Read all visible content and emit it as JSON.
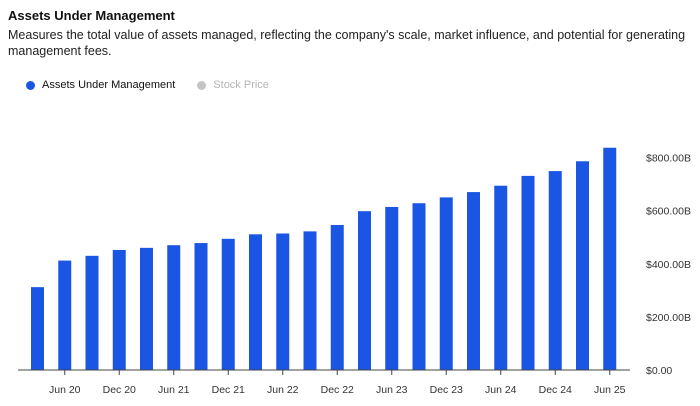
{
  "header": {
    "title": "Assets Under Management",
    "subtitle": "Measures the total value of assets managed, reflecting the company's scale, market influence, and potential for generating management fees."
  },
  "legend": [
    {
      "label": "Assets Under Management",
      "color": "#1a56e3",
      "active": true
    },
    {
      "label": "Stock Price",
      "color": "#c4c4c4",
      "active": false
    }
  ],
  "chart_data": {
    "type": "bar",
    "x_tick_labels": [
      "Jun 20",
      "Dec 20",
      "Jun 21",
      "Dec 21",
      "Jun 22",
      "Dec 22",
      "Jun 23",
      "Dec 23",
      "Jun 24",
      "Dec 24",
      "Jun 25"
    ],
    "series": [
      {
        "name": "Assets Under Management",
        "color": "#1a56e3",
        "values": [
          312,
          412,
          430,
          452,
          460,
          470,
          478,
          494,
          511,
          514,
          522,
          546,
          598,
          614,
          628,
          650,
          670,
          694,
          731,
          749,
          786,
          837
        ]
      }
    ],
    "y_axis": {
      "min": 0,
      "max": 900,
      "position": "right",
      "ticks": [
        0,
        200,
        400,
        600,
        800
      ],
      "tick_labels": [
        "$0.00",
        "$200.00B",
        "$400.00B",
        "$600.00B",
        "$800.00B"
      ]
    },
    "grid": false,
    "legend_position": "top-left"
  }
}
